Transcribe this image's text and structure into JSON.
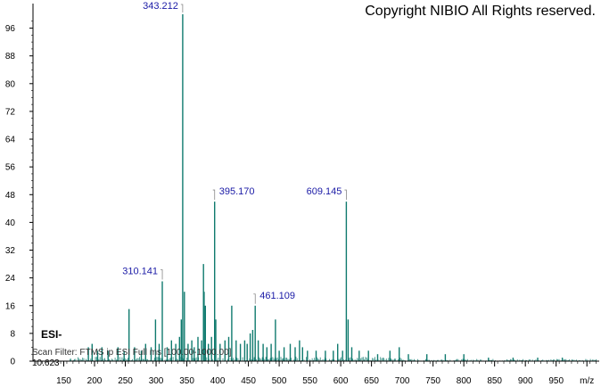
{
  "copyright": "Copyright NIBIO All Rights reserved.",
  "ion_mode": "ESI-",
  "scan_filter": "Scan Filter: FTMS ip ESI Full ms [100.00-1000.00]",
  "retention_time": "10.623",
  "colors": {
    "peaks": "#0f7a6e",
    "labels": "#1a1aa6",
    "axes": "#000000"
  },
  "chart_data": {
    "type": "bar",
    "title": "",
    "xlabel": "m/z",
    "ylabel": "",
    "xlim": [
      100,
      1020
    ],
    "ylim": [
      0,
      100
    ],
    "x_ticks": [
      150,
      200,
      250,
      300,
      350,
      400,
      450,
      500,
      550,
      600,
      650,
      700,
      750,
      800,
      850,
      900,
      950,
      1000
    ],
    "x_tick_labels": [
      "150",
      "200",
      "250",
      "300",
      "350",
      "400",
      "450",
      "500",
      "550",
      "600",
      "650",
      "700",
      "750",
      "800",
      "850",
      "900",
      "950",
      "m/z"
    ],
    "y_ticks": [
      0,
      8,
      16,
      24,
      32,
      40,
      48,
      56,
      64,
      72,
      80,
      88,
      96
    ],
    "grid": false,
    "labeled_peaks": [
      {
        "mz": 310.141,
        "intensity": 23,
        "label": "310.141"
      },
      {
        "mz": 343.212,
        "intensity": 100,
        "label": "343.212"
      },
      {
        "mz": 395.17,
        "intensity": 46,
        "label": "395.170"
      },
      {
        "mz": 461.109,
        "intensity": 16,
        "label": "461.109"
      },
      {
        "mz": 609.145,
        "intensity": 46,
        "label": "609.145"
      }
    ],
    "peaks": [
      {
        "mz": 190,
        "intensity": 4
      },
      {
        "mz": 196,
        "intensity": 5
      },
      {
        "mz": 205,
        "intensity": 3
      },
      {
        "mz": 212,
        "intensity": 4
      },
      {
        "mz": 222,
        "intensity": 3
      },
      {
        "mz": 238,
        "intensity": 4
      },
      {
        "mz": 248,
        "intensity": 3
      },
      {
        "mz": 256,
        "intensity": 15
      },
      {
        "mz": 265,
        "intensity": 4
      },
      {
        "mz": 276,
        "intensity": 3
      },
      {
        "mz": 283,
        "intensity": 5
      },
      {
        "mz": 292,
        "intensity": 4
      },
      {
        "mz": 299,
        "intensity": 12
      },
      {
        "mz": 305,
        "intensity": 5
      },
      {
        "mz": 310.141,
        "intensity": 23
      },
      {
        "mz": 318,
        "intensity": 4
      },
      {
        "mz": 325,
        "intensity": 6
      },
      {
        "mz": 332,
        "intensity": 5
      },
      {
        "mz": 338,
        "intensity": 7
      },
      {
        "mz": 341,
        "intensity": 12
      },
      {
        "mz": 343.212,
        "intensity": 100
      },
      {
        "mz": 346,
        "intensity": 20
      },
      {
        "mz": 352,
        "intensity": 5
      },
      {
        "mz": 358,
        "intensity": 6
      },
      {
        "mz": 362,
        "intensity": 4
      },
      {
        "mz": 368,
        "intensity": 7
      },
      {
        "mz": 374,
        "intensity": 6
      },
      {
        "mz": 377,
        "intensity": 28
      },
      {
        "mz": 378,
        "intensity": 20
      },
      {
        "mz": 380,
        "intensity": 16
      },
      {
        "mz": 385,
        "intensity": 5
      },
      {
        "mz": 390,
        "intensity": 7
      },
      {
        "mz": 395.17,
        "intensity": 46
      },
      {
        "mz": 397,
        "intensity": 12
      },
      {
        "mz": 404,
        "intensity": 5
      },
      {
        "mz": 412,
        "intensity": 6
      },
      {
        "mz": 418,
        "intensity": 7
      },
      {
        "mz": 423,
        "intensity": 16
      },
      {
        "mz": 430,
        "intensity": 6
      },
      {
        "mz": 437,
        "intensity": 5
      },
      {
        "mz": 444,
        "intensity": 6
      },
      {
        "mz": 448,
        "intensity": 5
      },
      {
        "mz": 453,
        "intensity": 8
      },
      {
        "mz": 457,
        "intensity": 9
      },
      {
        "mz": 461.109,
        "intensity": 16
      },
      {
        "mz": 466,
        "intensity": 6
      },
      {
        "mz": 474,
        "intensity": 5
      },
      {
        "mz": 480,
        "intensity": 4
      },
      {
        "mz": 487,
        "intensity": 5
      },
      {
        "mz": 494,
        "intensity": 12
      },
      {
        "mz": 500,
        "intensity": 3
      },
      {
        "mz": 508,
        "intensity": 4
      },
      {
        "mz": 518,
        "intensity": 5
      },
      {
        "mz": 526,
        "intensity": 4
      },
      {
        "mz": 533,
        "intensity": 6
      },
      {
        "mz": 538,
        "intensity": 4
      },
      {
        "mz": 546,
        "intensity": 3
      },
      {
        "mz": 560,
        "intensity": 3
      },
      {
        "mz": 575,
        "intensity": 3
      },
      {
        "mz": 588,
        "intensity": 3
      },
      {
        "mz": 595,
        "intensity": 5
      },
      {
        "mz": 603,
        "intensity": 3
      },
      {
        "mz": 609.145,
        "intensity": 46
      },
      {
        "mz": 612,
        "intensity": 12
      },
      {
        "mz": 618,
        "intensity": 4
      },
      {
        "mz": 630,
        "intensity": 3
      },
      {
        "mz": 645,
        "intensity": 3
      },
      {
        "mz": 660,
        "intensity": 2
      },
      {
        "mz": 680,
        "intensity": 3
      },
      {
        "mz": 695,
        "intensity": 4
      },
      {
        "mz": 710,
        "intensity": 2
      },
      {
        "mz": 740,
        "intensity": 2
      },
      {
        "mz": 770,
        "intensity": 2
      },
      {
        "mz": 800,
        "intensity": 2
      },
      {
        "mz": 840,
        "intensity": 1
      },
      {
        "mz": 880,
        "intensity": 1
      },
      {
        "mz": 920,
        "intensity": 1
      },
      {
        "mz": 960,
        "intensity": 1
      }
    ]
  }
}
